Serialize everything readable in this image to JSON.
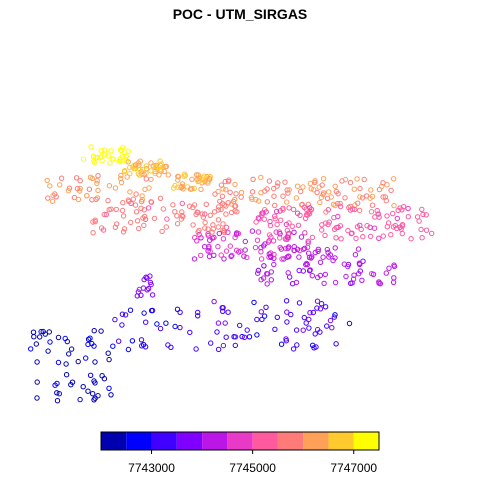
{
  "chart_data": {
    "type": "scatter",
    "title": "POC - UTM_SIRGAS",
    "xlabel": "",
    "ylabel": "",
    "color_variable_range": [
      7742000,
      7748000
    ],
    "colorbar": {
      "breaks": [
        7742000,
        7742500,
        7743000,
        7743500,
        7744000,
        7744500,
        7745000,
        7745500,
        7746000,
        7746500,
        7747000,
        7747500
      ],
      "colors": [
        "#0000ae",
        "#0000ff",
        "#3f00ff",
        "#7f00ff",
        "#bb16e8",
        "#e83ac7",
        "#ff5aa0",
        "#ff7b7a",
        "#ffa059",
        "#ffca2d",
        "#ffff00"
      ],
      "tick_values": [
        7743000,
        7745000,
        7747000
      ],
      "tick_labels": [
        "7743000",
        "7745000",
        "7747000"
      ]
    },
    "clusters": [
      {
        "x": [
          0.13,
          0.24
        ],
        "y": [
          0.78,
          0.88
        ],
        "value": [
          7747000,
          7747500
        ],
        "n": 28
      },
      {
        "x": [
          0.23,
          0.34
        ],
        "y": [
          0.73,
          0.8
        ],
        "value": [
          7746200,
          7746900
        ],
        "n": 45
      },
      {
        "x": [
          0.35,
          0.44
        ],
        "y": [
          0.66,
          0.74
        ],
        "value": [
          7746000,
          7746700
        ],
        "n": 40
      },
      {
        "x": [
          0.04,
          0.3
        ],
        "y": [
          0.6,
          0.74
        ],
        "value": [
          7745800,
          7746500
        ],
        "n": 45
      },
      {
        "x": [
          0.15,
          0.5
        ],
        "y": [
          0.45,
          0.62
        ],
        "value": [
          7745400,
          7746000
        ],
        "n": 90
      },
      {
        "x": [
          0.45,
          0.9
        ],
        "y": [
          0.55,
          0.72
        ],
        "value": [
          7745600,
          7746300
        ],
        "n": 110
      },
      {
        "x": [
          0.55,
          0.98
        ],
        "y": [
          0.42,
          0.58
        ],
        "value": [
          7744900,
          7745500
        ],
        "n": 110
      },
      {
        "x": [
          0.4,
          0.68
        ],
        "y": [
          0.32,
          0.46
        ],
        "value": [
          7744300,
          7744900
        ],
        "n": 80
      },
      {
        "x": [
          0.55,
          0.82
        ],
        "y": [
          0.2,
          0.38
        ],
        "value": [
          7743900,
          7744500
        ],
        "n": 70
      },
      {
        "x": [
          0.8,
          0.9
        ],
        "y": [
          0.2,
          0.3
        ],
        "value": [
          7744000,
          7744600
        ],
        "n": 12
      },
      {
        "x": [
          0.26,
          0.3
        ],
        "y": [
          0.12,
          0.24
        ],
        "value": [
          7743700,
          7744100
        ],
        "n": 14
      },
      {
        "x": [
          0.44,
          0.78
        ],
        "y": [
          -0.12,
          0.12
        ],
        "value": [
          7742900,
          7743700
        ],
        "n": 65
      },
      {
        "x": [
          0.2,
          0.42
        ],
        "y": [
          -0.12,
          0.08
        ],
        "value": [
          7742700,
          7743400
        ],
        "n": 30
      },
      {
        "x": [
          0.0,
          0.2
        ],
        "y": [
          -0.38,
          -0.02
        ],
        "value": [
          7742000,
          7742700
        ],
        "n": 55
      }
    ]
  }
}
